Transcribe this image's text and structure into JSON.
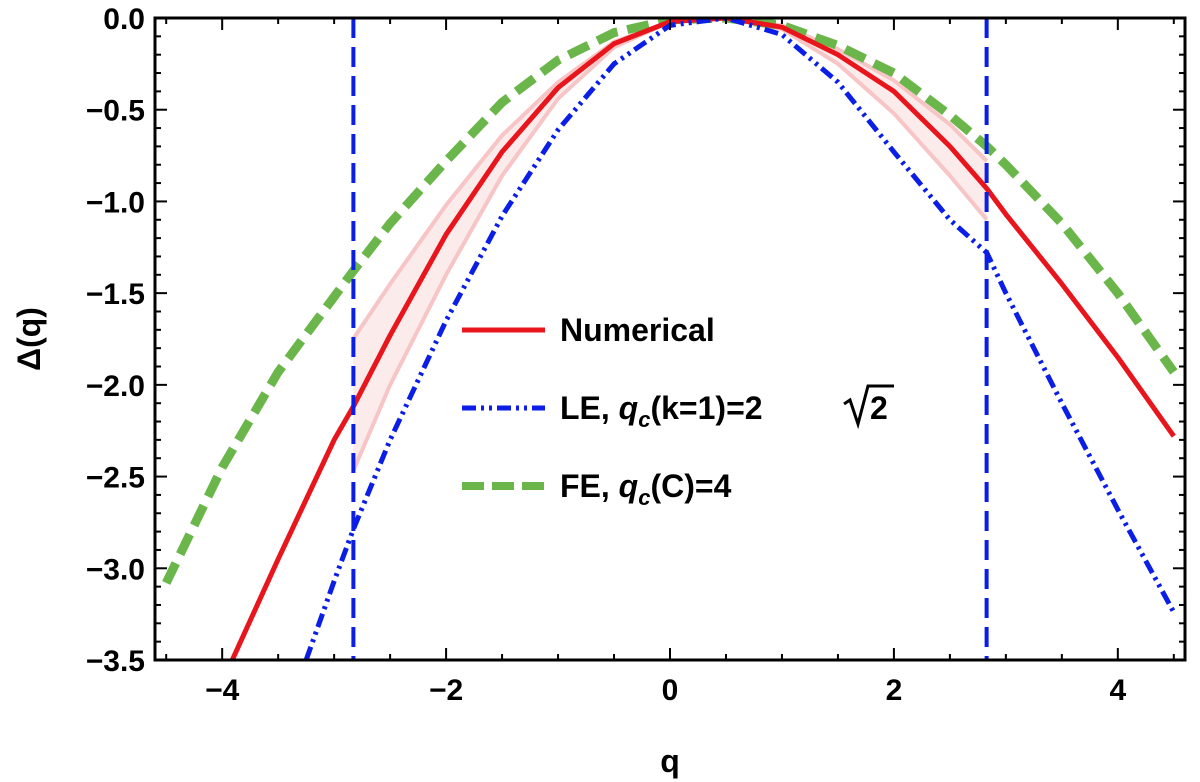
{
  "chart_data": {
    "type": "line",
    "xlabel": "q",
    "ylabel": "Δ(q)",
    "xlim": [
      -4.6,
      4.6
    ],
    "ylim": [
      -3.5,
      0.0
    ],
    "xticks": [
      -4,
      -2,
      0,
      2,
      4
    ],
    "xtick_labels": [
      "−4",
      "−2",
      "0",
      "2",
      "4"
    ],
    "yticks": [
      0.0,
      -0.5,
      -1.0,
      -1.5,
      -2.0,
      -2.5,
      -3.0,
      -3.5
    ],
    "ytick_labels": [
      "0.0",
      "−0.5",
      "−1.0",
      "−1.5",
      "−2.0",
      "−2.5",
      "−3.0",
      "−3.5"
    ],
    "grid": false,
    "legend_position": "center",
    "vertical_lines": [
      {
        "x": -2.828,
        "color": "#0a1ee6",
        "style": "dashed"
      },
      {
        "x": 2.828,
        "color": "#0a1ee6",
        "style": "dashed"
      }
    ],
    "series": [
      {
        "name": "Numerical",
        "color": "#e8161c",
        "style": "solid",
        "x": [
          -3.91,
          -3.5,
          -3.0,
          -2.83,
          -2.5,
          -2.0,
          -1.5,
          -1.0,
          -0.5,
          0.0,
          0.5,
          1.0,
          1.5,
          2.0,
          2.5,
          2.83,
          3.0,
          3.5,
          4.0,
          4.5
        ],
        "y": [
          -3.5,
          -2.95,
          -2.3,
          -2.12,
          -1.73,
          -1.18,
          -0.73,
          -0.38,
          -0.14,
          -0.02,
          0.0,
          -0.05,
          -0.2,
          -0.4,
          -0.7,
          -0.93,
          -1.07,
          -1.45,
          -1.85,
          -2.28
        ]
      },
      {
        "name": "Numerical (uncertainty band)",
        "color": "#f7c5c5",
        "style": "band",
        "x": [
          -2.83,
          -2.5,
          -2.0,
          -1.5,
          -1.0,
          -0.5,
          0.0,
          0.5,
          1.0,
          1.5,
          2.0,
          2.5,
          2.83
        ],
        "upper": [
          -1.75,
          -1.45,
          -1.02,
          -0.64,
          -0.35,
          -0.13,
          -0.02,
          0.0,
          -0.04,
          -0.17,
          -0.34,
          -0.58,
          -0.78
        ],
        "lower": [
          -2.47,
          -2.0,
          -1.4,
          -0.86,
          -0.44,
          -0.16,
          -0.02,
          0.0,
          -0.06,
          -0.25,
          -0.52,
          -0.86,
          -1.1
        ]
      },
      {
        "name": "LE",
        "legend_label": "LE, ",
        "color": "#0a1ee6",
        "style": "dash-dot-dot",
        "x": [
          -3.25,
          -3.0,
          -2.83,
          -2.5,
          -2.0,
          -1.5,
          -1.0,
          -0.5,
          0.0,
          0.5,
          1.0,
          1.5,
          2.0,
          2.5,
          2.83,
          3.0,
          3.5,
          4.0,
          4.5
        ],
        "y": [
          -3.5,
          -3.07,
          -2.79,
          -2.3,
          -1.65,
          -1.08,
          -0.61,
          -0.25,
          -0.04,
          0.0,
          -0.09,
          -0.35,
          -0.73,
          -1.1,
          -1.28,
          -1.5,
          -2.1,
          -2.68,
          -3.24
        ]
      },
      {
        "name": "FE",
        "legend_label": "FE, ",
        "color": "#6bb64a",
        "style": "dashed",
        "x": [
          -4.5,
          -4.0,
          -3.5,
          -3.0,
          -2.83,
          -2.5,
          -2.0,
          -1.5,
          -1.0,
          -0.5,
          0.0,
          0.5,
          1.0,
          1.5,
          2.0,
          2.5,
          2.83,
          3.0,
          3.5,
          4.0,
          4.5
        ],
        "y": [
          -3.08,
          -2.45,
          -1.93,
          -1.52,
          -1.38,
          -1.12,
          -0.78,
          -0.46,
          -0.23,
          -0.08,
          -0.01,
          0.0,
          -0.04,
          -0.15,
          -0.3,
          -0.53,
          -0.7,
          -0.8,
          -1.12,
          -1.5,
          -1.93
        ]
      }
    ],
    "legend": [
      {
        "series": "Numerical",
        "label": "Numerical"
      },
      {
        "series": "LE",
        "label": "LE, ",
        "math_symbol": "q",
        "math_sub": "c",
        "math_rest": "(k=1)=2",
        "sqrt_radicand": "2"
      },
      {
        "series": "FE",
        "label": "FE, ",
        "math_symbol": "q",
        "math_sub": "c",
        "math_rest": "(C)=4"
      }
    ]
  }
}
